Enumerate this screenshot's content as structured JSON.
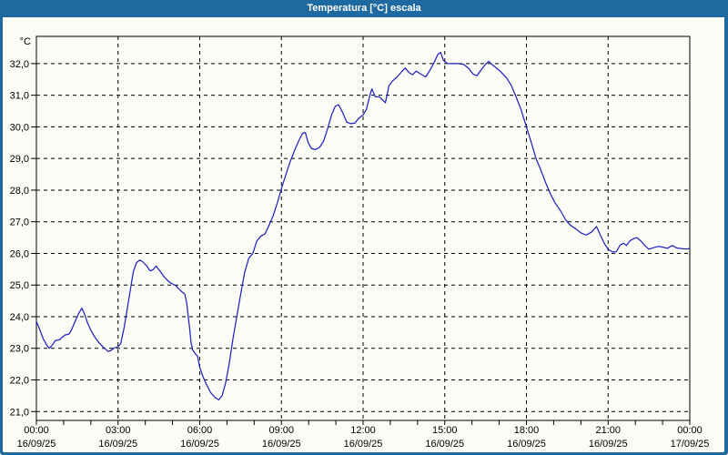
{
  "window": {
    "title": "Temperatura [°C] escala",
    "title_bar_color": "#1E699F",
    "frame_color": "#1E699F",
    "background_color": "#FBFCF5"
  },
  "chart_data": {
    "type": "line",
    "title": "Temperatura [°C] escala",
    "y_unit": "°C",
    "ylabel_decimal_separator": ",",
    "ylim": [
      20.72,
      32.86
    ],
    "xlim_hours": [
      0,
      24
    ],
    "y_ticks": [
      21.0,
      22.0,
      23.0,
      24.0,
      25.0,
      26.0,
      27.0,
      28.0,
      29.0,
      30.0,
      31.0,
      32.0
    ],
    "x_minor_tick_every_hours": 1,
    "grid": "dashed-black",
    "legend": "none",
    "axis_color": "#000000",
    "x_ticks_major": [
      {
        "hour": 0,
        "time": "00:00",
        "date": "16/09/25"
      },
      {
        "hour": 3,
        "time": "03:00",
        "date": "16/09/25"
      },
      {
        "hour": 6,
        "time": "06:00",
        "date": "16/09/25"
      },
      {
        "hour": 9,
        "time": "09:00",
        "date": "16/09/25"
      },
      {
        "hour": 12,
        "time": "12:00",
        "date": "16/09/25"
      },
      {
        "hour": 15,
        "time": "15:00",
        "date": "16/09/25"
      },
      {
        "hour": 18,
        "time": "18:00",
        "date": "16/09/25"
      },
      {
        "hour": 21,
        "time": "21:00",
        "date": "16/09/25"
      },
      {
        "hour": 24,
        "time": "00:00",
        "date": "17/09/25"
      }
    ],
    "series": [
      {
        "name": "Temperatura",
        "color": "#2222C0",
        "points_hour_degC": [
          [
            0.0,
            23.85
          ],
          [
            0.12,
            23.6
          ],
          [
            0.25,
            23.3
          ],
          [
            0.38,
            23.1
          ],
          [
            0.47,
            23.0
          ],
          [
            0.58,
            23.1
          ],
          [
            0.7,
            23.25
          ],
          [
            0.85,
            23.27
          ],
          [
            0.95,
            23.35
          ],
          [
            1.05,
            23.42
          ],
          [
            1.2,
            23.45
          ],
          [
            1.3,
            23.6
          ],
          [
            1.42,
            23.85
          ],
          [
            1.55,
            24.1
          ],
          [
            1.67,
            24.27
          ],
          [
            1.78,
            24.05
          ],
          [
            1.88,
            23.8
          ],
          [
            2.0,
            23.57
          ],
          [
            2.15,
            23.35
          ],
          [
            2.3,
            23.17
          ],
          [
            2.5,
            23.0
          ],
          [
            2.63,
            22.9
          ],
          [
            2.72,
            22.92
          ],
          [
            2.84,
            23.0
          ],
          [
            3.0,
            23.05
          ],
          [
            3.1,
            23.15
          ],
          [
            3.23,
            23.68
          ],
          [
            3.34,
            24.26
          ],
          [
            3.45,
            24.84
          ],
          [
            3.56,
            25.42
          ],
          [
            3.68,
            25.71
          ],
          [
            3.79,
            25.79
          ],
          [
            3.9,
            25.74
          ],
          [
            4.06,
            25.6
          ],
          [
            4.17,
            25.45
          ],
          [
            4.28,
            25.48
          ],
          [
            4.4,
            25.6
          ],
          [
            4.56,
            25.42
          ],
          [
            4.67,
            25.28
          ],
          [
            4.78,
            25.18
          ],
          [
            4.9,
            25.08
          ],
          [
            5.01,
            25.03
          ],
          [
            5.12,
            24.98
          ],
          [
            5.23,
            24.88
          ],
          [
            5.35,
            24.78
          ],
          [
            5.45,
            24.72
          ],
          [
            5.52,
            24.45
          ],
          [
            5.57,
            24.07
          ],
          [
            5.63,
            23.63
          ],
          [
            5.68,
            23.19
          ],
          [
            5.74,
            22.95
          ],
          [
            5.82,
            22.85
          ],
          [
            5.92,
            22.75
          ],
          [
            6.0,
            22.4
          ],
          [
            6.12,
            22.1
          ],
          [
            6.25,
            21.85
          ],
          [
            6.4,
            21.6
          ],
          [
            6.55,
            21.45
          ],
          [
            6.7,
            21.37
          ],
          [
            6.82,
            21.5
          ],
          [
            6.95,
            21.9
          ],
          [
            7.08,
            22.5
          ],
          [
            7.22,
            23.3
          ],
          [
            7.36,
            24.0
          ],
          [
            7.5,
            24.7
          ],
          [
            7.65,
            25.4
          ],
          [
            7.8,
            25.85
          ],
          [
            7.95,
            26.0
          ],
          [
            8.1,
            26.4
          ],
          [
            8.25,
            26.55
          ],
          [
            8.4,
            26.62
          ],
          [
            8.55,
            26.9
          ],
          [
            8.7,
            27.2
          ],
          [
            8.85,
            27.6
          ],
          [
            9.0,
            28.05
          ],
          [
            9.15,
            28.45
          ],
          [
            9.3,
            28.85
          ],
          [
            9.48,
            29.25
          ],
          [
            9.63,
            29.55
          ],
          [
            9.78,
            29.8
          ],
          [
            9.88,
            29.82
          ],
          [
            9.98,
            29.5
          ],
          [
            10.1,
            29.32
          ],
          [
            10.25,
            29.28
          ],
          [
            10.4,
            29.35
          ],
          [
            10.55,
            29.55
          ],
          [
            10.7,
            29.95
          ],
          [
            10.85,
            30.4
          ],
          [
            10.98,
            30.65
          ],
          [
            11.1,
            30.7
          ],
          [
            11.25,
            30.45
          ],
          [
            11.4,
            30.15
          ],
          [
            11.55,
            30.1
          ],
          [
            11.7,
            30.12
          ],
          [
            11.85,
            30.28
          ],
          [
            12.0,
            30.38
          ],
          [
            12.12,
            30.55
          ],
          [
            12.25,
            31.0
          ],
          [
            12.32,
            31.2
          ],
          [
            12.45,
            30.95
          ],
          [
            12.6,
            30.95
          ],
          [
            12.72,
            30.85
          ],
          [
            12.82,
            30.76
          ],
          [
            12.95,
            31.3
          ],
          [
            13.08,
            31.45
          ],
          [
            13.25,
            31.58
          ],
          [
            13.42,
            31.75
          ],
          [
            13.55,
            31.86
          ],
          [
            13.68,
            31.72
          ],
          [
            13.82,
            31.65
          ],
          [
            13.95,
            31.76
          ],
          [
            14.1,
            31.68
          ],
          [
            14.3,
            31.58
          ],
          [
            14.45,
            31.78
          ],
          [
            14.6,
            32.02
          ],
          [
            14.75,
            32.3
          ],
          [
            14.85,
            32.35
          ],
          [
            14.95,
            32.1
          ],
          [
            15.1,
            32.0
          ],
          [
            15.3,
            32.0
          ],
          [
            15.5,
            32.0
          ],
          [
            15.7,
            31.97
          ],
          [
            15.88,
            31.85
          ],
          [
            16.05,
            31.66
          ],
          [
            16.18,
            31.62
          ],
          [
            16.35,
            31.82
          ],
          [
            16.5,
            31.98
          ],
          [
            16.62,
            32.07
          ],
          [
            16.75,
            31.96
          ],
          [
            16.9,
            31.86
          ],
          [
            17.05,
            31.75
          ],
          [
            17.28,
            31.53
          ],
          [
            17.45,
            31.3
          ],
          [
            17.62,
            30.95
          ],
          [
            17.8,
            30.55
          ],
          [
            18.0,
            30.0
          ],
          [
            18.18,
            29.5
          ],
          [
            18.35,
            29.0
          ],
          [
            18.52,
            28.65
          ],
          [
            18.7,
            28.25
          ],
          [
            18.87,
            27.9
          ],
          [
            19.05,
            27.6
          ],
          [
            19.25,
            27.35
          ],
          [
            19.45,
            27.05
          ],
          [
            19.6,
            26.9
          ],
          [
            19.8,
            26.78
          ],
          [
            20.0,
            26.65
          ],
          [
            20.2,
            26.58
          ],
          [
            20.4,
            26.68
          ],
          [
            20.57,
            26.85
          ],
          [
            20.72,
            26.57
          ],
          [
            20.87,
            26.3
          ],
          [
            21.0,
            26.13
          ],
          [
            21.15,
            26.05
          ],
          [
            21.3,
            26.05
          ],
          [
            21.45,
            26.27
          ],
          [
            21.57,
            26.32
          ],
          [
            21.67,
            26.25
          ],
          [
            21.8,
            26.4
          ],
          [
            21.95,
            26.47
          ],
          [
            22.05,
            26.5
          ],
          [
            22.2,
            26.4
          ],
          [
            22.35,
            26.25
          ],
          [
            22.5,
            26.13
          ],
          [
            22.67,
            26.18
          ],
          [
            22.85,
            26.22
          ],
          [
            23.0,
            26.2
          ],
          [
            23.17,
            26.16
          ],
          [
            23.35,
            26.25
          ],
          [
            23.5,
            26.18
          ],
          [
            23.7,
            26.15
          ],
          [
            23.85,
            26.14
          ],
          [
            24.0,
            26.15
          ]
        ]
      }
    ]
  }
}
